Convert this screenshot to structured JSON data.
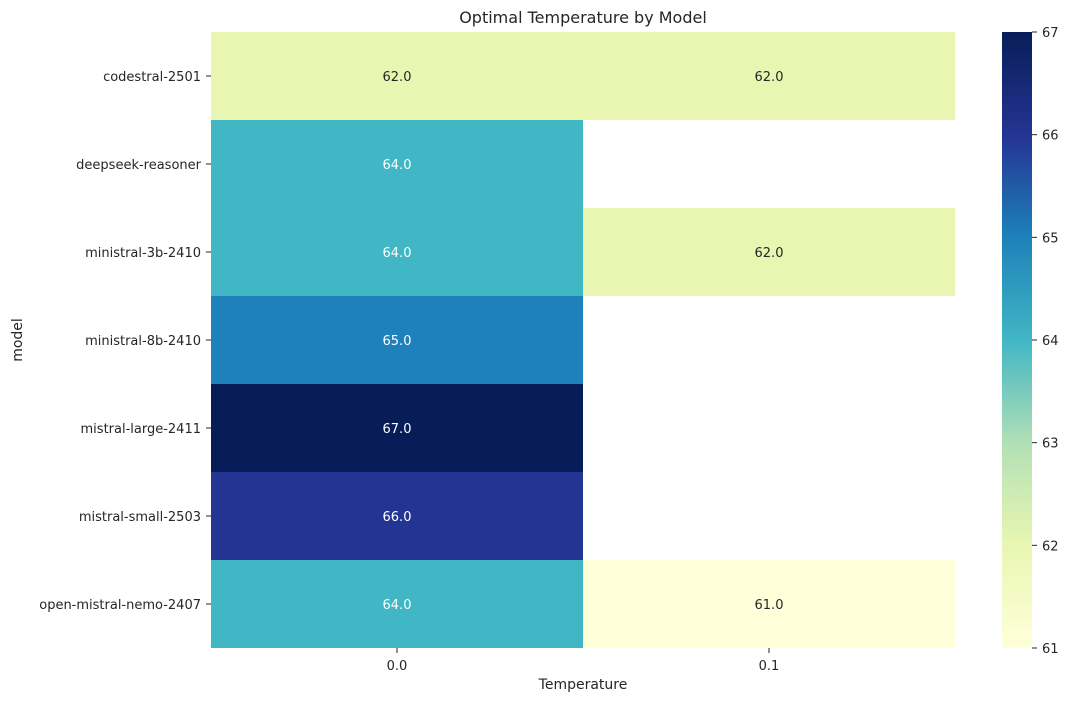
{
  "chart_data": {
    "type": "heatmap",
    "title": "Optimal Temperature by Model",
    "xlabel": "Temperature",
    "ylabel": "model",
    "x_categories": [
      "0.0",
      "0.1"
    ],
    "y_categories": [
      "codestral-2501",
      "deepseek-reasoner",
      "ministral-3b-2410",
      "ministral-8b-2410",
      "mistral-large-2411",
      "mistral-small-2503",
      "open-mistral-nemo-2407"
    ],
    "values": [
      [
        62.0,
        62.0
      ],
      [
        64.0,
        null
      ],
      [
        64.0,
        62.0
      ],
      [
        65.0,
        null
      ],
      [
        67.0,
        null
      ],
      [
        66.0,
        null
      ],
      [
        64.0,
        61.0
      ]
    ],
    "cell_labels": [
      [
        "62.0",
        "62.0"
      ],
      [
        "64.0",
        ""
      ],
      [
        "64.0",
        "62.0"
      ],
      [
        "65.0",
        ""
      ],
      [
        "67.0",
        ""
      ],
      [
        "66.0",
        ""
      ],
      [
        "64.0",
        "61.0"
      ]
    ],
    "colormap": "YlGnBu",
    "colorbar": {
      "range": [
        61,
        67
      ],
      "ticks": [
        "61",
        "62",
        "63",
        "64",
        "65",
        "66",
        "67"
      ]
    },
    "missing_cells": "blank (white)"
  }
}
